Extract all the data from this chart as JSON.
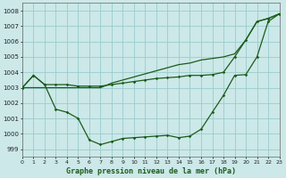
{
  "title": "Graphe pression niveau de la mer (hPa)",
  "bg_color": "#cce8e8",
  "grid_color": "#99cccc",
  "line_color": "#1a5c1a",
  "xlim": [
    0,
    23
  ],
  "ylim": [
    998.5,
    1008.5
  ],
  "yticks": [
    999,
    1000,
    1001,
    1002,
    1003,
    1004,
    1005,
    1006,
    1007,
    1008
  ],
  "xticks": [
    0,
    1,
    2,
    3,
    4,
    5,
    6,
    7,
    8,
    9,
    10,
    11,
    12,
    13,
    14,
    15,
    16,
    17,
    18,
    19,
    20,
    21,
    22,
    23
  ],
  "series1_y": [
    1003.0,
    1003.0,
    1003.0,
    1003.0,
    1003.0,
    1003.0,
    1003.0,
    1003.0,
    1003.3,
    1003.5,
    1003.7,
    1003.9,
    1004.1,
    1004.3,
    1004.5,
    1004.6,
    1004.8,
    1004.9,
    1005.0,
    1005.2,
    1006.1,
    1007.3,
    1007.5,
    1007.8
  ],
  "series2_y": [
    1003.0,
    1003.8,
    1003.2,
    1003.2,
    1003.2,
    1003.1,
    1003.1,
    1003.1,
    1003.2,
    1003.3,
    1003.4,
    1003.5,
    1003.6,
    1003.65,
    1003.7,
    1003.8,
    1003.8,
    1003.85,
    1004.0,
    1005.0,
    1006.1,
    1007.3,
    1007.5,
    1007.8
  ],
  "series3_y": [
    1003.0,
    1003.8,
    1003.2,
    1001.6,
    1001.4,
    1001.0,
    999.6,
    999.3,
    999.5,
    999.7,
    999.75,
    999.8,
    999.85,
    999.9,
    999.75,
    999.85,
    1000.3,
    1001.4,
    1002.5,
    1003.8,
    1003.85,
    1005.0,
    1007.3,
    1007.8
  ]
}
